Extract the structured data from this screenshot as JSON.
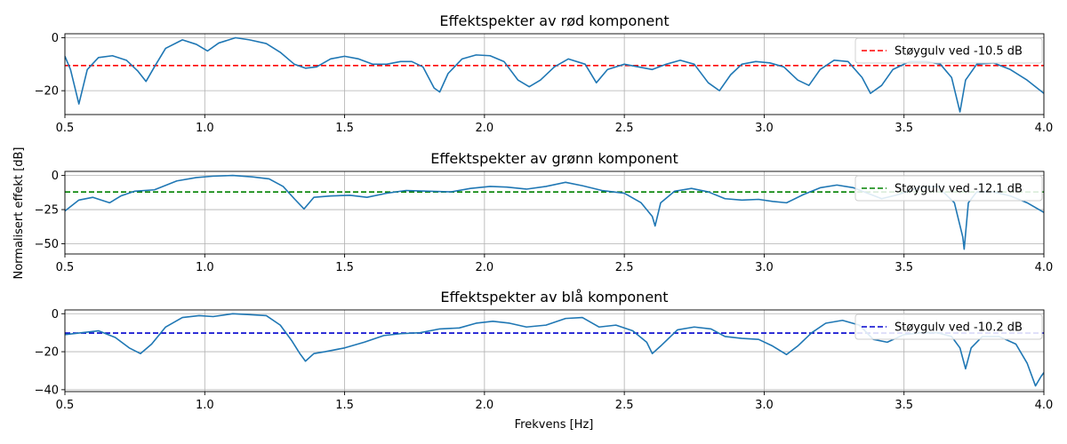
{
  "figure": {
    "ylabel": "Normalisert effekt [dB]",
    "xlabel": "Frekvens [Hz]"
  },
  "chart_data": [
    {
      "type": "line",
      "title": "Effektspekter av rød komponent",
      "xlim": [
        0.5,
        4.0
      ],
      "ylim": [
        -29,
        1.5
      ],
      "xticks": [
        0.5,
        1.0,
        1.5,
        2.0,
        2.5,
        3.0,
        3.5,
        4.0
      ],
      "xtick_labels": [
        "0.5",
        "1.0",
        "1.5",
        "2.0",
        "2.5",
        "3.0",
        "3.5",
        "4.0"
      ],
      "yticks": [
        0,
        -20
      ],
      "ytick_labels": [
        "0",
        "−20"
      ],
      "grid": true,
      "legend_placement": "upper right",
      "noise_floor": {
        "label": "Støygulv ved -10.5 dB",
        "value": -10.5,
        "color": "#ff0000",
        "style": "dashed"
      },
      "series": [
        {
          "color": "#1f77b4",
          "x": [
            0.5,
            0.52,
            0.55,
            0.58,
            0.62,
            0.67,
            0.72,
            0.76,
            0.79,
            0.82,
            0.86,
            0.92,
            0.97,
            1.01,
            1.05,
            1.11,
            1.16,
            1.22,
            1.27,
            1.32,
            1.36,
            1.4,
            1.45,
            1.5,
            1.55,
            1.6,
            1.65,
            1.7,
            1.74,
            1.78,
            1.82,
            1.84,
            1.87,
            1.92,
            1.97,
            2.02,
            2.07,
            2.12,
            2.16,
            2.2,
            2.25,
            2.3,
            2.36,
            2.4,
            2.44,
            2.5,
            2.55,
            2.6,
            2.65,
            2.7,
            2.75,
            2.8,
            2.84,
            2.88,
            2.92,
            2.97,
            3.02,
            3.07,
            3.12,
            3.16,
            3.2,
            3.25,
            3.3,
            3.35,
            3.38,
            3.42,
            3.46,
            3.52,
            3.58,
            3.63,
            3.67,
            3.7,
            3.72,
            3.76,
            3.82,
            3.88,
            3.94,
            4.0
          ],
          "y": [
            -7,
            -12,
            -25,
            -12,
            -7.5,
            -6.8,
            -8.5,
            -12.5,
            -16.5,
            -11,
            -4,
            -0.8,
            -2.5,
            -5,
            -2,
            0,
            -0.8,
            -2.2,
            -5.5,
            -10,
            -11.5,
            -11,
            -8,
            -7,
            -8,
            -10,
            -10,
            -9,
            -9,
            -11,
            -19,
            -20.5,
            -13.5,
            -8,
            -6.5,
            -6.8,
            -9,
            -16,
            -18.5,
            -16,
            -11,
            -8,
            -10,
            -17,
            -12,
            -10,
            -11,
            -12,
            -10,
            -8.5,
            -10,
            -17,
            -20,
            -14,
            -10,
            -9,
            -9.5,
            -11,
            -16,
            -18,
            -12,
            -8.5,
            -9,
            -15,
            -21,
            -18,
            -12,
            -9,
            -9,
            -10,
            -15,
            -28,
            -16,
            -10,
            -9.5,
            -12,
            -16,
            -21
          ]
        }
      ]
    },
    {
      "type": "line",
      "title": "Effektspekter av grønn komponent",
      "xlim": [
        0.5,
        4.0
      ],
      "ylim": [
        -57.5,
        3
      ],
      "xticks": [
        0.5,
        1.0,
        1.5,
        2.0,
        2.5,
        3.0,
        3.5,
        4.0
      ],
      "xtick_labels": [
        "0.5",
        "1.0",
        "1.5",
        "2.0",
        "2.5",
        "3.0",
        "3.5",
        "4.0"
      ],
      "yticks": [
        0,
        -25,
        -50
      ],
      "ytick_labels": [
        "0",
        "−25",
        "−50"
      ],
      "grid": true,
      "legend_placement": "upper right",
      "noise_floor": {
        "label": "Støygulv ved -12.1 dB",
        "value": -12.1,
        "color": "#008000",
        "style": "dashed"
      },
      "series": [
        {
          "color": "#1f77b4",
          "x": [
            0.5,
            0.55,
            0.6,
            0.66,
            0.7,
            0.75,
            0.82,
            0.9,
            0.97,
            1.03,
            1.1,
            1.17,
            1.23,
            1.28,
            1.32,
            1.355,
            1.39,
            1.45,
            1.52,
            1.58,
            1.65,
            1.72,
            1.8,
            1.88,
            1.95,
            2.02,
            2.08,
            2.15,
            2.22,
            2.29,
            2.35,
            2.42,
            2.5,
            2.56,
            2.6,
            2.61,
            2.63,
            2.68,
            2.74,
            2.8,
            2.86,
            2.92,
            2.98,
            3.03,
            3.08,
            3.14,
            3.2,
            3.26,
            3.32,
            3.37,
            3.42,
            3.48,
            3.55,
            3.62,
            3.68,
            3.71,
            3.715,
            3.73,
            3.76,
            3.82,
            3.88,
            3.94,
            4.0
          ],
          "y": [
            -26,
            -18,
            -16,
            -20,
            -15,
            -11.5,
            -10.5,
            -4,
            -1.5,
            -0.5,
            0,
            -1,
            -2.5,
            -8,
            -17,
            -24.5,
            -16,
            -15,
            -14.5,
            -16,
            -13,
            -11,
            -11.5,
            -12,
            -9.5,
            -8,
            -8.5,
            -10,
            -8,
            -5,
            -7.5,
            -11,
            -13,
            -20,
            -30,
            -37,
            -20,
            -11.5,
            -9.5,
            -12,
            -17,
            -18,
            -17.5,
            -19,
            -20,
            -14,
            -9,
            -7,
            -9,
            -13,
            -17,
            -14,
            -9,
            -8,
            -20,
            -45,
            -54,
            -20,
            -12,
            -12,
            -15,
            -20,
            -27
          ]
        }
      ]
    },
    {
      "type": "line",
      "title": "Effektspekter av blå komponent",
      "xlim": [
        0.5,
        4.0
      ],
      "ylim": [
        -41,
        2
      ],
      "xticks": [
        0.5,
        1.0,
        1.5,
        2.0,
        2.5,
        3.0,
        3.5,
        4.0
      ],
      "xtick_labels": [
        "0.5",
        "1.0",
        "1.5",
        "2.0",
        "2.5",
        "3.0",
        "3.5",
        "4.0"
      ],
      "yticks": [
        0,
        -20,
        -40
      ],
      "ytick_labels": [
        "0",
        "−20",
        "−40"
      ],
      "grid": true,
      "legend_placement": "upper right",
      "noise_floor": {
        "label": "Støygulv ved -10.2 dB",
        "value": -10.2,
        "color": "#0000cd",
        "style": "dashed"
      },
      "series": [
        {
          "color": "#1f77b4",
          "x": [
            0.5,
            0.56,
            0.62,
            0.68,
            0.73,
            0.77,
            0.81,
            0.86,
            0.92,
            0.98,
            1.03,
            1.1,
            1.16,
            1.22,
            1.27,
            1.31,
            1.34,
            1.36,
            1.39,
            1.43,
            1.5,
            1.57,
            1.64,
            1.7,
            1.77,
            1.84,
            1.91,
            1.97,
            2.03,
            2.09,
            2.15,
            2.22,
            2.29,
            2.35,
            2.41,
            2.47,
            2.53,
            2.58,
            2.6,
            2.63,
            2.69,
            2.75,
            2.81,
            2.86,
            2.92,
            2.98,
            3.03,
            3.08,
            3.12,
            3.17,
            3.22,
            3.28,
            3.34,
            3.39,
            3.44,
            3.5,
            3.56,
            3.62,
            3.67,
            3.7,
            3.72,
            3.74,
            3.78,
            3.84,
            3.9,
            3.94,
            3.97,
            3.99,
            4.0
          ],
          "y": [
            -11,
            -10,
            -9,
            -12.5,
            -18,
            -21,
            -16,
            -7,
            -2,
            -1,
            -1.5,
            0,
            -0.5,
            -1,
            -6,
            -14,
            -21,
            -25,
            -21,
            -20,
            -18,
            -15,
            -11.5,
            -10.5,
            -10,
            -8,
            -7.5,
            -5,
            -4,
            -5,
            -7,
            -6,
            -2.5,
            -2,
            -7,
            -6,
            -9,
            -15,
            -21,
            -17,
            -8.5,
            -7,
            -8,
            -12,
            -13,
            -13.5,
            -17,
            -21.5,
            -17,
            -10,
            -5,
            -3.5,
            -6,
            -13.5,
            -15,
            -11,
            -10,
            -10,
            -12,
            -18,
            -29,
            -18,
            -12,
            -12,
            -16,
            -26,
            -38,
            -33,
            -31
          ]
        }
      ]
    }
  ]
}
